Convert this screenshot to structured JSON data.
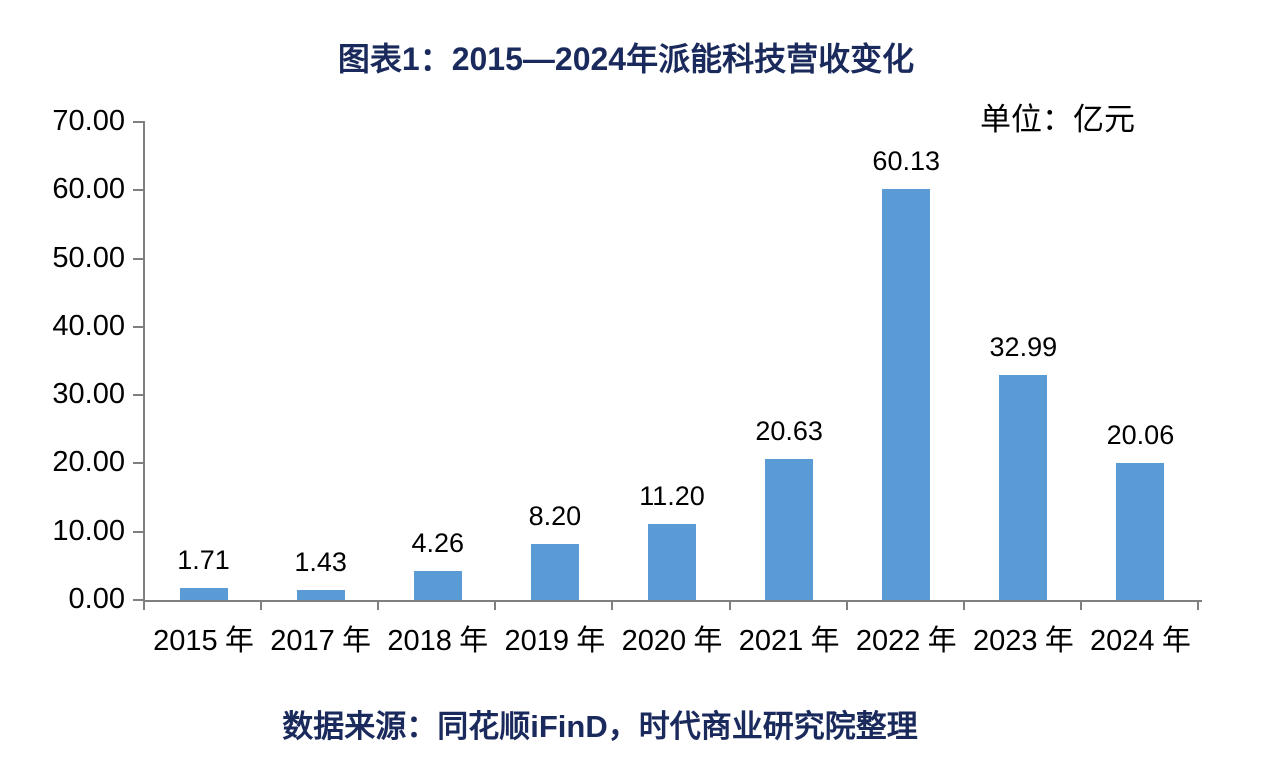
{
  "title": "图表1：2015—2024年派能科技营收变化",
  "unit_label": "单位：亿元",
  "source_note": "数据来源：同花顺iFinD，时代商业研究院整理",
  "colors": {
    "bar": "#5B9BD5",
    "title_text": "#1B2A5C",
    "source_text": "#1B2A5C",
    "axis": "#7F7F7F",
    "tick_label": "#000000",
    "data_label": "#000000"
  },
  "chart_data": {
    "type": "bar",
    "title": "图表1：2015—2024年派能科技营收变化",
    "unit": "亿元",
    "categories": [
      "2015",
      "2017",
      "2018",
      "2019",
      "2020",
      "2021",
      "2022",
      "2023",
      "2024"
    ],
    "category_suffix": "年",
    "values": [
      1.71,
      1.43,
      4.26,
      8.2,
      11.2,
      20.63,
      60.13,
      32.99,
      20.06
    ],
    "data_labels": [
      "1.71",
      "1.43",
      "4.26",
      "8.20",
      "11.20",
      "20.63",
      "60.13",
      "32.99",
      "20.06"
    ],
    "xlabel": "",
    "ylabel": "",
    "ylim": [
      0,
      70
    ],
    "ytick_interval": 10,
    "ytick_labels": [
      "0.00",
      "10.00",
      "20.00",
      "30.00",
      "40.00",
      "50.00",
      "60.00",
      "70.00"
    ],
    "grid": false,
    "legend": false,
    "bar_color": "#5B9BD5"
  }
}
